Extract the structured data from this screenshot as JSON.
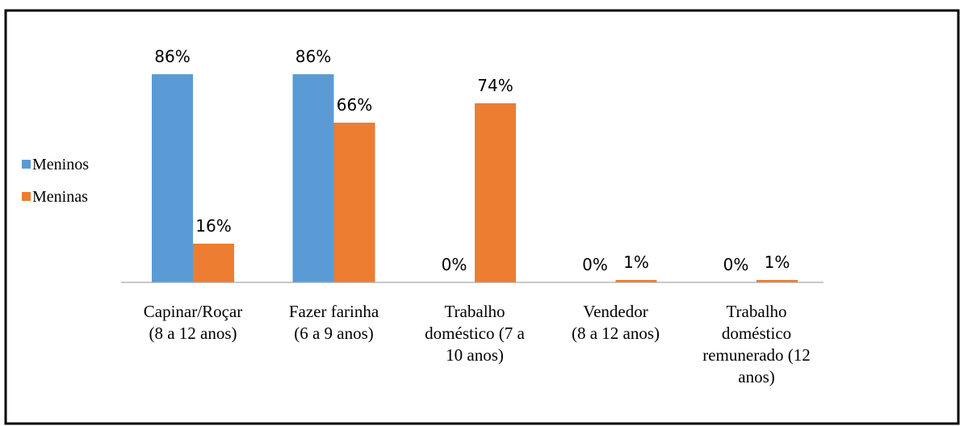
{
  "chart_data": {
    "type": "bar",
    "title": "",
    "xlabel": "",
    "ylabel": "",
    "ylim": [
      0,
      100
    ],
    "grid": false,
    "legend_position": "left",
    "categories": [
      [
        "Capinar/Roçar",
        "(8 a 12 anos)"
      ],
      [
        "Fazer farinha",
        "(6 a 9 anos)"
      ],
      [
        "Trabalho",
        "doméstico (7 a",
        "10 anos)"
      ],
      [
        "Vendedor",
        "(8 a 12 anos)"
      ],
      [
        "Trabalho",
        "doméstico",
        "remunerado (12",
        "anos)"
      ]
    ],
    "series": [
      {
        "name": "Meninos",
        "color": "#5b9bd5",
        "values": [
          86,
          86,
          0,
          0,
          0
        ],
        "labels": [
          "86%",
          "86%",
          "0%",
          "0%",
          "0%"
        ]
      },
      {
        "name": "Meninas",
        "color": "#ed7d31",
        "values": [
          16,
          66,
          74,
          1,
          1
        ],
        "labels": [
          "16%",
          "66%",
          "74%",
          "1%",
          "1%"
        ]
      }
    ]
  }
}
